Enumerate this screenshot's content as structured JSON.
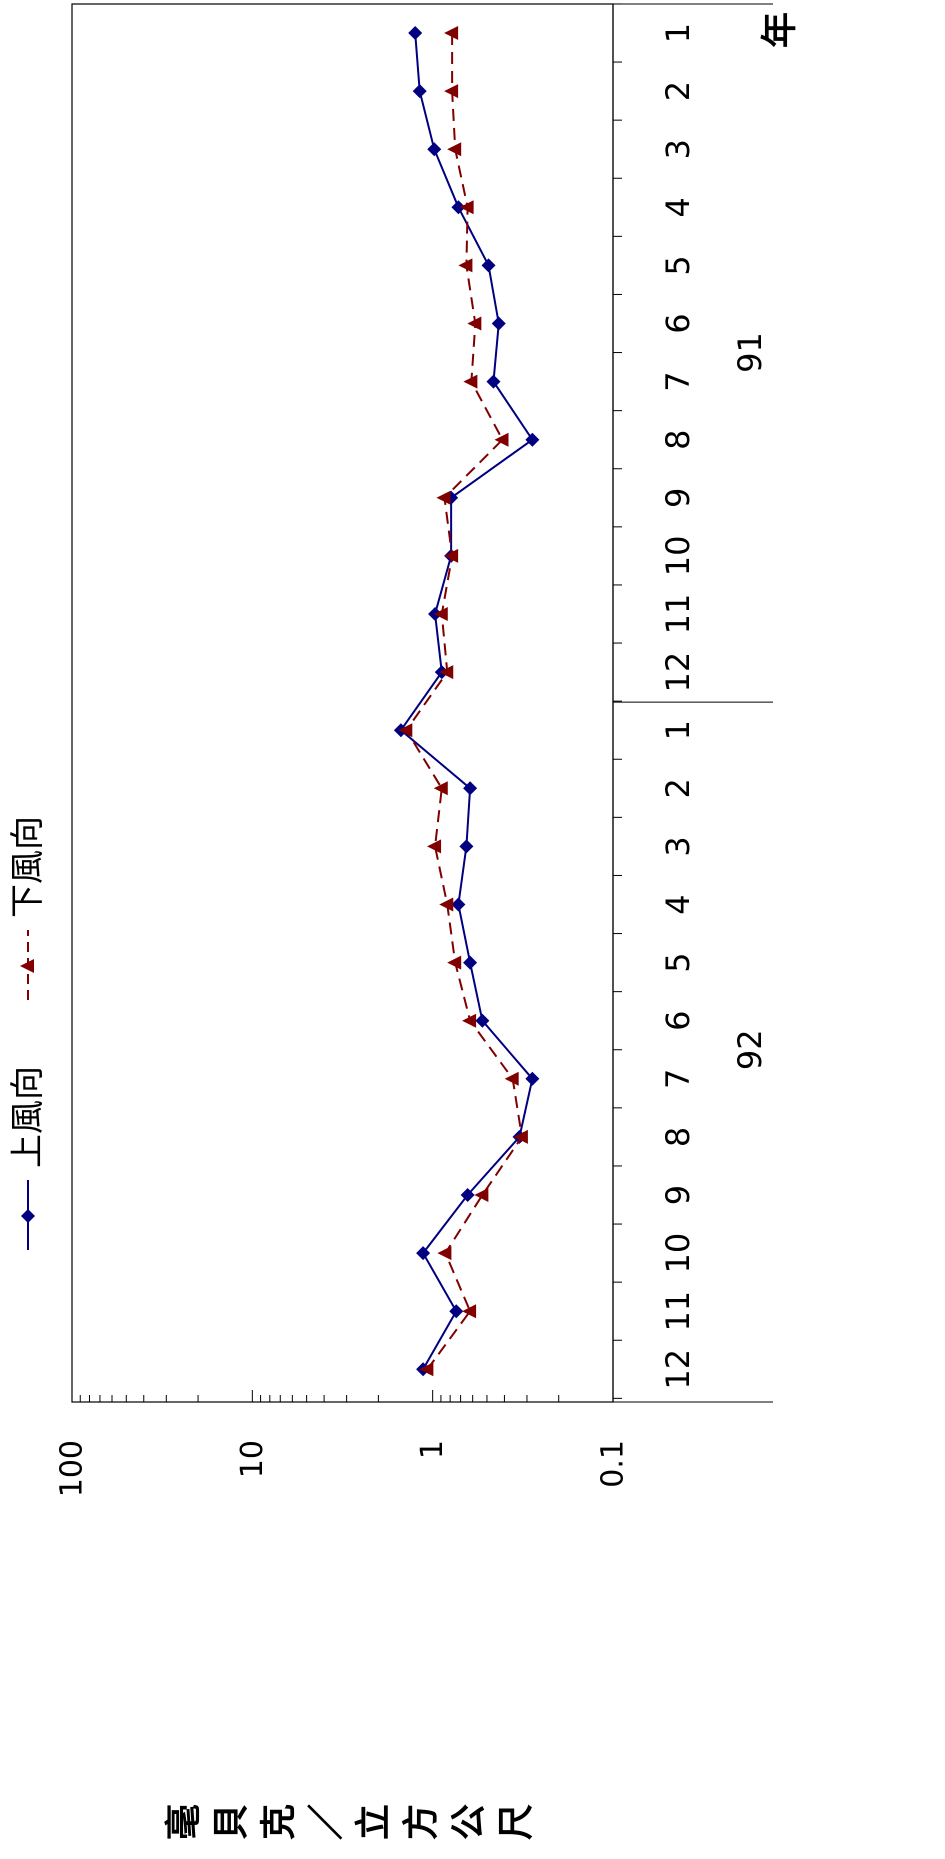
{
  "chart_data": {
    "type": "line",
    "orientation": "rotated-90-clockwise",
    "ylabel": "毫貝克／立方公尺",
    "xlabel": "年",
    "y_scale": "log",
    "ylim": [
      0.1,
      100
    ],
    "y_ticks": [
      "0.1",
      "1",
      "10",
      "100"
    ],
    "grid": false,
    "legend_position": "top",
    "year_groups": [
      {
        "label": "91",
        "months": [
          "1",
          "2",
          "3",
          "4",
          "5",
          "6",
          "7",
          "8",
          "9",
          "10",
          "11",
          "12"
        ]
      },
      {
        "label": "92",
        "months": [
          "1",
          "2",
          "3",
          "4",
          "5",
          "6",
          "7",
          "8",
          "9",
          "10",
          "11",
          "12"
        ]
      }
    ],
    "series": [
      {
        "name": "上風向",
        "color": "#000080",
        "marker": "diamond",
        "line_style": "solid",
        "values": [
          1.25,
          1.18,
          0.98,
          0.72,
          0.49,
          0.43,
          0.46,
          0.28,
          0.79,
          0.79,
          0.97,
          0.89,
          1.5,
          0.62,
          0.65,
          0.72,
          0.62,
          0.53,
          0.28,
          0.33,
          0.64,
          1.13,
          0.74,
          1.13
        ]
      },
      {
        "name": "下風向",
        "color": "#800000",
        "marker": "triangle",
        "line_style": "dashed",
        "values": [
          0.78,
          0.78,
          0.75,
          0.64,
          0.65,
          0.58,
          0.61,
          0.41,
          0.86,
          0.78,
          0.89,
          0.83,
          1.4,
          0.89,
          0.97,
          0.83,
          0.75,
          0.62,
          0.36,
          0.32,
          0.53,
          0.85,
          0.62,
          1.07
        ]
      }
    ]
  }
}
